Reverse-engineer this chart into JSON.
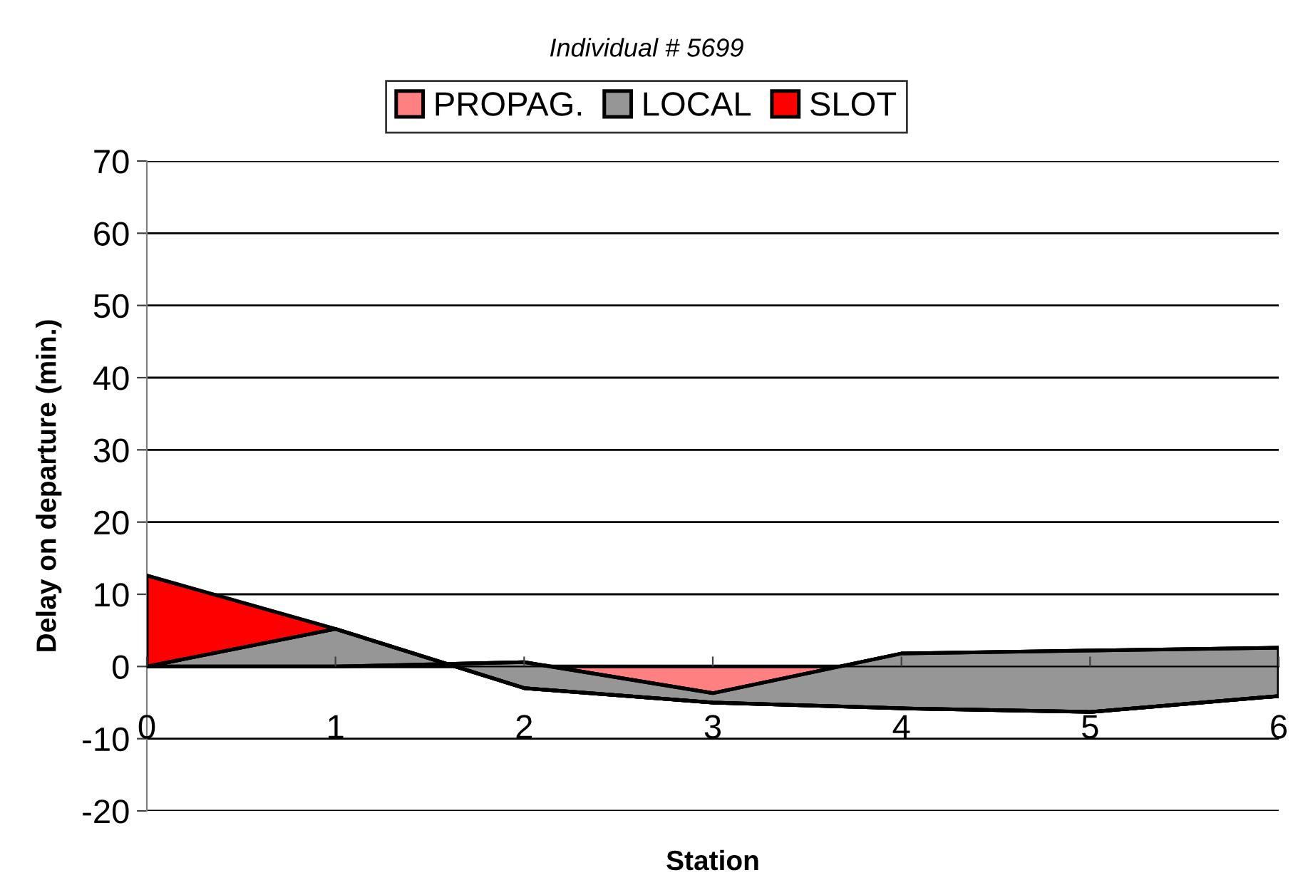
{
  "chart_data": {
    "type": "area",
    "stacked": true,
    "title": "Individual # 5699",
    "xlabel": "Station",
    "ylabel": "Delay on departure (min.)",
    "categories": [
      "0",
      "1",
      "2",
      "3",
      "4",
      "5",
      "6"
    ],
    "series": [
      {
        "name": "PROPAG.",
        "color": "#ff8080",
        "values": [
          0,
          0,
          0.6,
          -3.7,
          1.8,
          2.2,
          2.6
        ]
      },
      {
        "name": "LOCAL",
        "color": "#969696",
        "values": [
          0,
          5.2,
          -3.6,
          -1.3,
          -7.6,
          -8.5,
          -6.7
        ]
      },
      {
        "name": "SLOT",
        "color": "#ff0000",
        "values": [
          12.6,
          0,
          0,
          0,
          0,
          0,
          0
        ]
      }
    ],
    "ylim": [
      -20,
      70
    ],
    "yticks": [
      -20,
      -10,
      0,
      10,
      20,
      30,
      40,
      50,
      60,
      70
    ],
    "grid": "y",
    "legend": "top"
  }
}
